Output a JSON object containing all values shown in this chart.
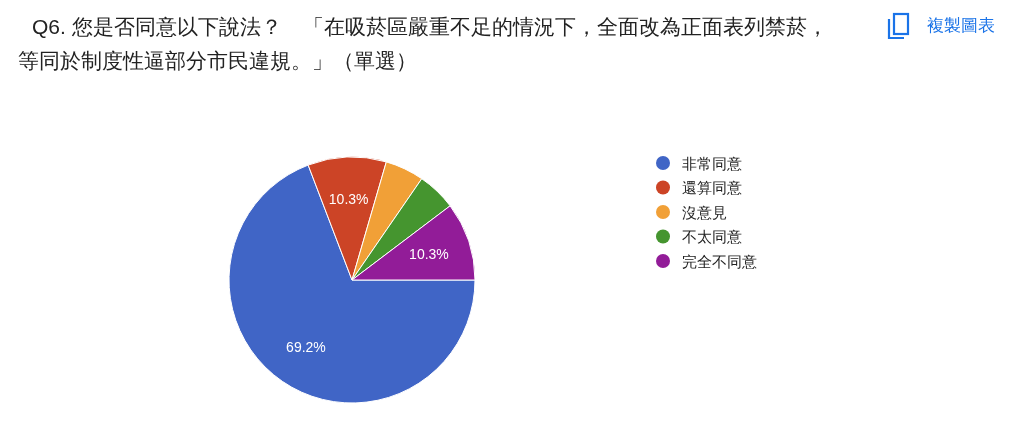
{
  "chart_data": {
    "type": "pie",
    "title": "Q6. 您是否同意以下說法？　「在吸菸區嚴重不足的情況下，全面改為正面表列禁菸，等同於制度性逼部分市民違規。」（單選）",
    "categories": [
      "非常同意",
      "還算同意",
      "沒意見",
      "不太同意",
      "完全不同意"
    ],
    "values": [
      69.2,
      10.3,
      5.1,
      5.1,
      10.3
    ],
    "colors": [
      "#4065c6",
      "#cc4426",
      "#f1a037",
      "#45952f",
      "#921c98"
    ],
    "value_labels": [
      "69.2%",
      "10.3%",
      null,
      null,
      "10.3%"
    ],
    "legend": "right",
    "annotations": [
      "複製圖表"
    ]
  }
}
